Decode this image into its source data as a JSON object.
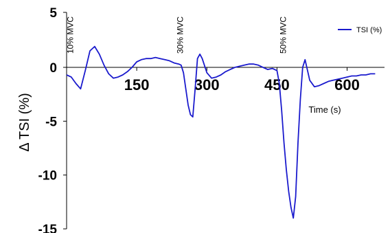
{
  "chart_data": {
    "type": "line",
    "title": "",
    "xlabel": "Time (s)",
    "ylabel": "Δ TSI (%)",
    "xlim": [
      0,
      680
    ],
    "ylim": [
      -15,
      5
    ],
    "x_ticks": [
      150,
      300,
      450,
      600
    ],
    "y_ticks": [
      5,
      0,
      -5,
      -10,
      -15
    ],
    "grid": false,
    "legend_position": "top-right",
    "line_color": "#1a1acd",
    "annotations": [
      {
        "text": "10% MVC",
        "x": 20
      },
      {
        "text": "30% MVC",
        "x": 255
      },
      {
        "text": "50% MVC",
        "x": 475
      }
    ],
    "series": [
      {
        "name": "TSI (%)",
        "x": [
          0,
          10,
          20,
          30,
          40,
          50,
          60,
          70,
          80,
          90,
          100,
          110,
          120,
          130,
          140,
          150,
          160,
          170,
          180,
          190,
          200,
          210,
          220,
          230,
          240,
          245,
          250,
          255,
          260,
          265,
          270,
          275,
          280,
          285,
          290,
          300,
          310,
          320,
          330,
          340,
          350,
          360,
          370,
          380,
          390,
          400,
          410,
          420,
          430,
          440,
          450,
          455,
          460,
          465,
          470,
          475,
          480,
          485,
          490,
          495,
          500,
          505,
          510,
          520,
          530,
          540,
          550,
          560,
          570,
          580,
          590,
          600,
          610,
          620,
          630,
          640,
          650,
          660
        ],
        "y": [
          -0.7,
          -0.9,
          -1.5,
          -2.0,
          -0.3,
          1.5,
          1.9,
          1.2,
          0.2,
          -0.6,
          -1.0,
          -0.9,
          -0.7,
          -0.4,
          0.0,
          0.5,
          0.7,
          0.8,
          0.8,
          0.9,
          0.8,
          0.7,
          0.6,
          0.4,
          0.3,
          0.2,
          -0.5,
          -2.0,
          -3.5,
          -4.4,
          -4.6,
          -2.0,
          0.8,
          1.2,
          0.8,
          -0.5,
          -1.0,
          -0.9,
          -0.7,
          -0.4,
          -0.2,
          0.0,
          0.1,
          0.2,
          0.3,
          0.3,
          0.2,
          0.0,
          -0.2,
          -0.1,
          -0.3,
          -1.5,
          -4.0,
          -7.0,
          -9.5,
          -11.5,
          -13.0,
          -14.0,
          -12.0,
          -7.0,
          -3.0,
          0.0,
          0.7,
          -1.2,
          -1.8,
          -1.7,
          -1.5,
          -1.3,
          -1.2,
          -1.1,
          -1.0,
          -0.9,
          -0.8,
          -0.8,
          -0.7,
          -0.7,
          -0.6,
          -0.6
        ]
      }
    ]
  }
}
